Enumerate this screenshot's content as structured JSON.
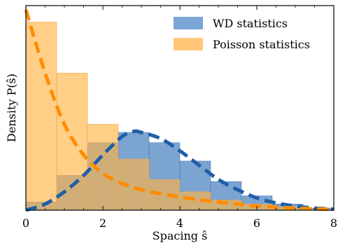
{
  "chart_data": {
    "type": "bar",
    "title": "",
    "xlabel": "Spacing ŝ",
    "ylabel": "Density P(ŝ)",
    "xlim": [
      0,
      8
    ],
    "ylim": [
      0,
      1.0
    ],
    "x_ticks": [
      "0",
      "2",
      "4",
      "6",
      "8"
    ],
    "grid": false,
    "legend_position": "top-right",
    "bin_edges": [
      0,
      0.8,
      1.6,
      2.4,
      3.2,
      4.0,
      4.8,
      5.6,
      6.4,
      7.2,
      8.0
    ],
    "series": [
      {
        "name": "WD statistics",
        "kind": "histogram",
        "color": "#4f86c2",
        "values": [
          0.04,
          0.17,
          0.33,
          0.38,
          0.33,
          0.24,
          0.14,
          0.07,
          0.03,
          0.01
        ]
      },
      {
        "name": "Poisson statistics",
        "kind": "histogram",
        "color": "#ffb347",
        "values": [
          0.92,
          0.67,
          0.42,
          0.25,
          0.15,
          0.09,
          0.05,
          0.03,
          0.015,
          0.005
        ]
      }
    ],
    "curves": [
      {
        "series": "WD statistics",
        "color": "#1f5fa8",
        "style": "dashed",
        "x": [
          0,
          0.5,
          1,
          1.5,
          2,
          2.5,
          2.8,
          3,
          3.5,
          4,
          4.5,
          5,
          5.5,
          6,
          6.5,
          7,
          7.5,
          8
        ],
        "y": [
          0.0,
          0.03,
          0.09,
          0.17,
          0.27,
          0.36,
          0.385,
          0.38,
          0.35,
          0.29,
          0.22,
          0.15,
          0.1,
          0.06,
          0.035,
          0.02,
          0.01,
          0.005
        ]
      },
      {
        "series": "Poisson statistics",
        "color": "#ff8c00",
        "style": "dashed",
        "x": [
          0,
          0.5,
          1,
          1.5,
          2,
          2.5,
          3,
          3.5,
          4,
          4.5,
          5,
          5.5,
          6,
          6.5,
          7,
          7.5,
          8
        ],
        "y": [
          0.98,
          0.67,
          0.42,
          0.27,
          0.18,
          0.13,
          0.1,
          0.08,
          0.065,
          0.05,
          0.04,
          0.03,
          0.02,
          0.015,
          0.01,
          0.006,
          0.004
        ]
      }
    ]
  }
}
